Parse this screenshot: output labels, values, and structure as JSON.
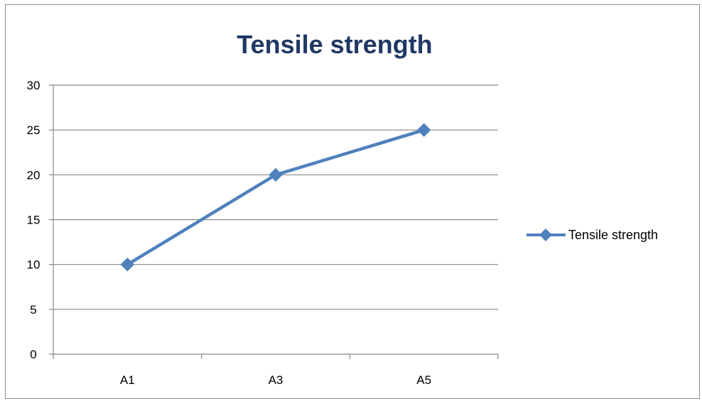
{
  "colors": {
    "title": "#1f3864",
    "series": "#4f81bd",
    "grid": "#868686",
    "axis": "#868686"
  },
  "chart_data": {
    "type": "line",
    "title": "Tensile strength",
    "xlabel": "",
    "ylabel": "",
    "categories": [
      "A1",
      "A3",
      "A5"
    ],
    "series": [
      {
        "name": "Tensile strength",
        "values": [
          10,
          20,
          25
        ],
        "marker": "diamond"
      }
    ],
    "ylim": [
      0,
      30
    ],
    "yticks": [
      "0",
      "5",
      "10",
      "15",
      "20",
      "25",
      "30"
    ],
    "grid": true,
    "legend": "right"
  }
}
